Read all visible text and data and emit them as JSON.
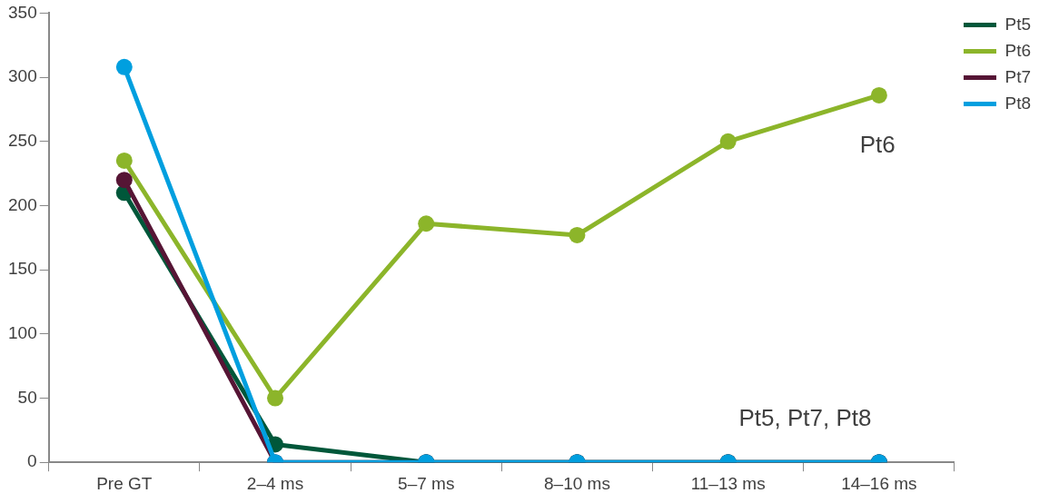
{
  "chart_data": {
    "type": "line",
    "categories": [
      "Pre GT",
      "2–4 ms",
      "5–7 ms",
      "8–10 ms",
      "11–13 ms",
      "14–16 ms"
    ],
    "series": [
      {
        "name": "Pt5",
        "color": "#00573a",
        "values": [
          210,
          14,
          0,
          0,
          0,
          0
        ]
      },
      {
        "name": "Pt6",
        "color": "#8cb52a",
        "values": [
          235,
          50,
          186,
          177,
          250,
          286
        ]
      },
      {
        "name": "Pt7",
        "color": "#561535",
        "values": [
          220,
          0,
          0,
          0,
          0,
          0
        ]
      },
      {
        "name": "Pt8",
        "color": "#009fdf",
        "values": [
          308,
          0,
          0,
          0,
          0,
          0
        ]
      }
    ],
    "ylim": [
      0,
      350
    ],
    "yticks": [
      0,
      50,
      100,
      150,
      200,
      250,
      300,
      350
    ],
    "grid": false,
    "legend": "top right",
    "marker": "circle",
    "line_style": "solid",
    "annotations": [
      "Pt6",
      "Pt5, Pt7, Pt8"
    ]
  }
}
